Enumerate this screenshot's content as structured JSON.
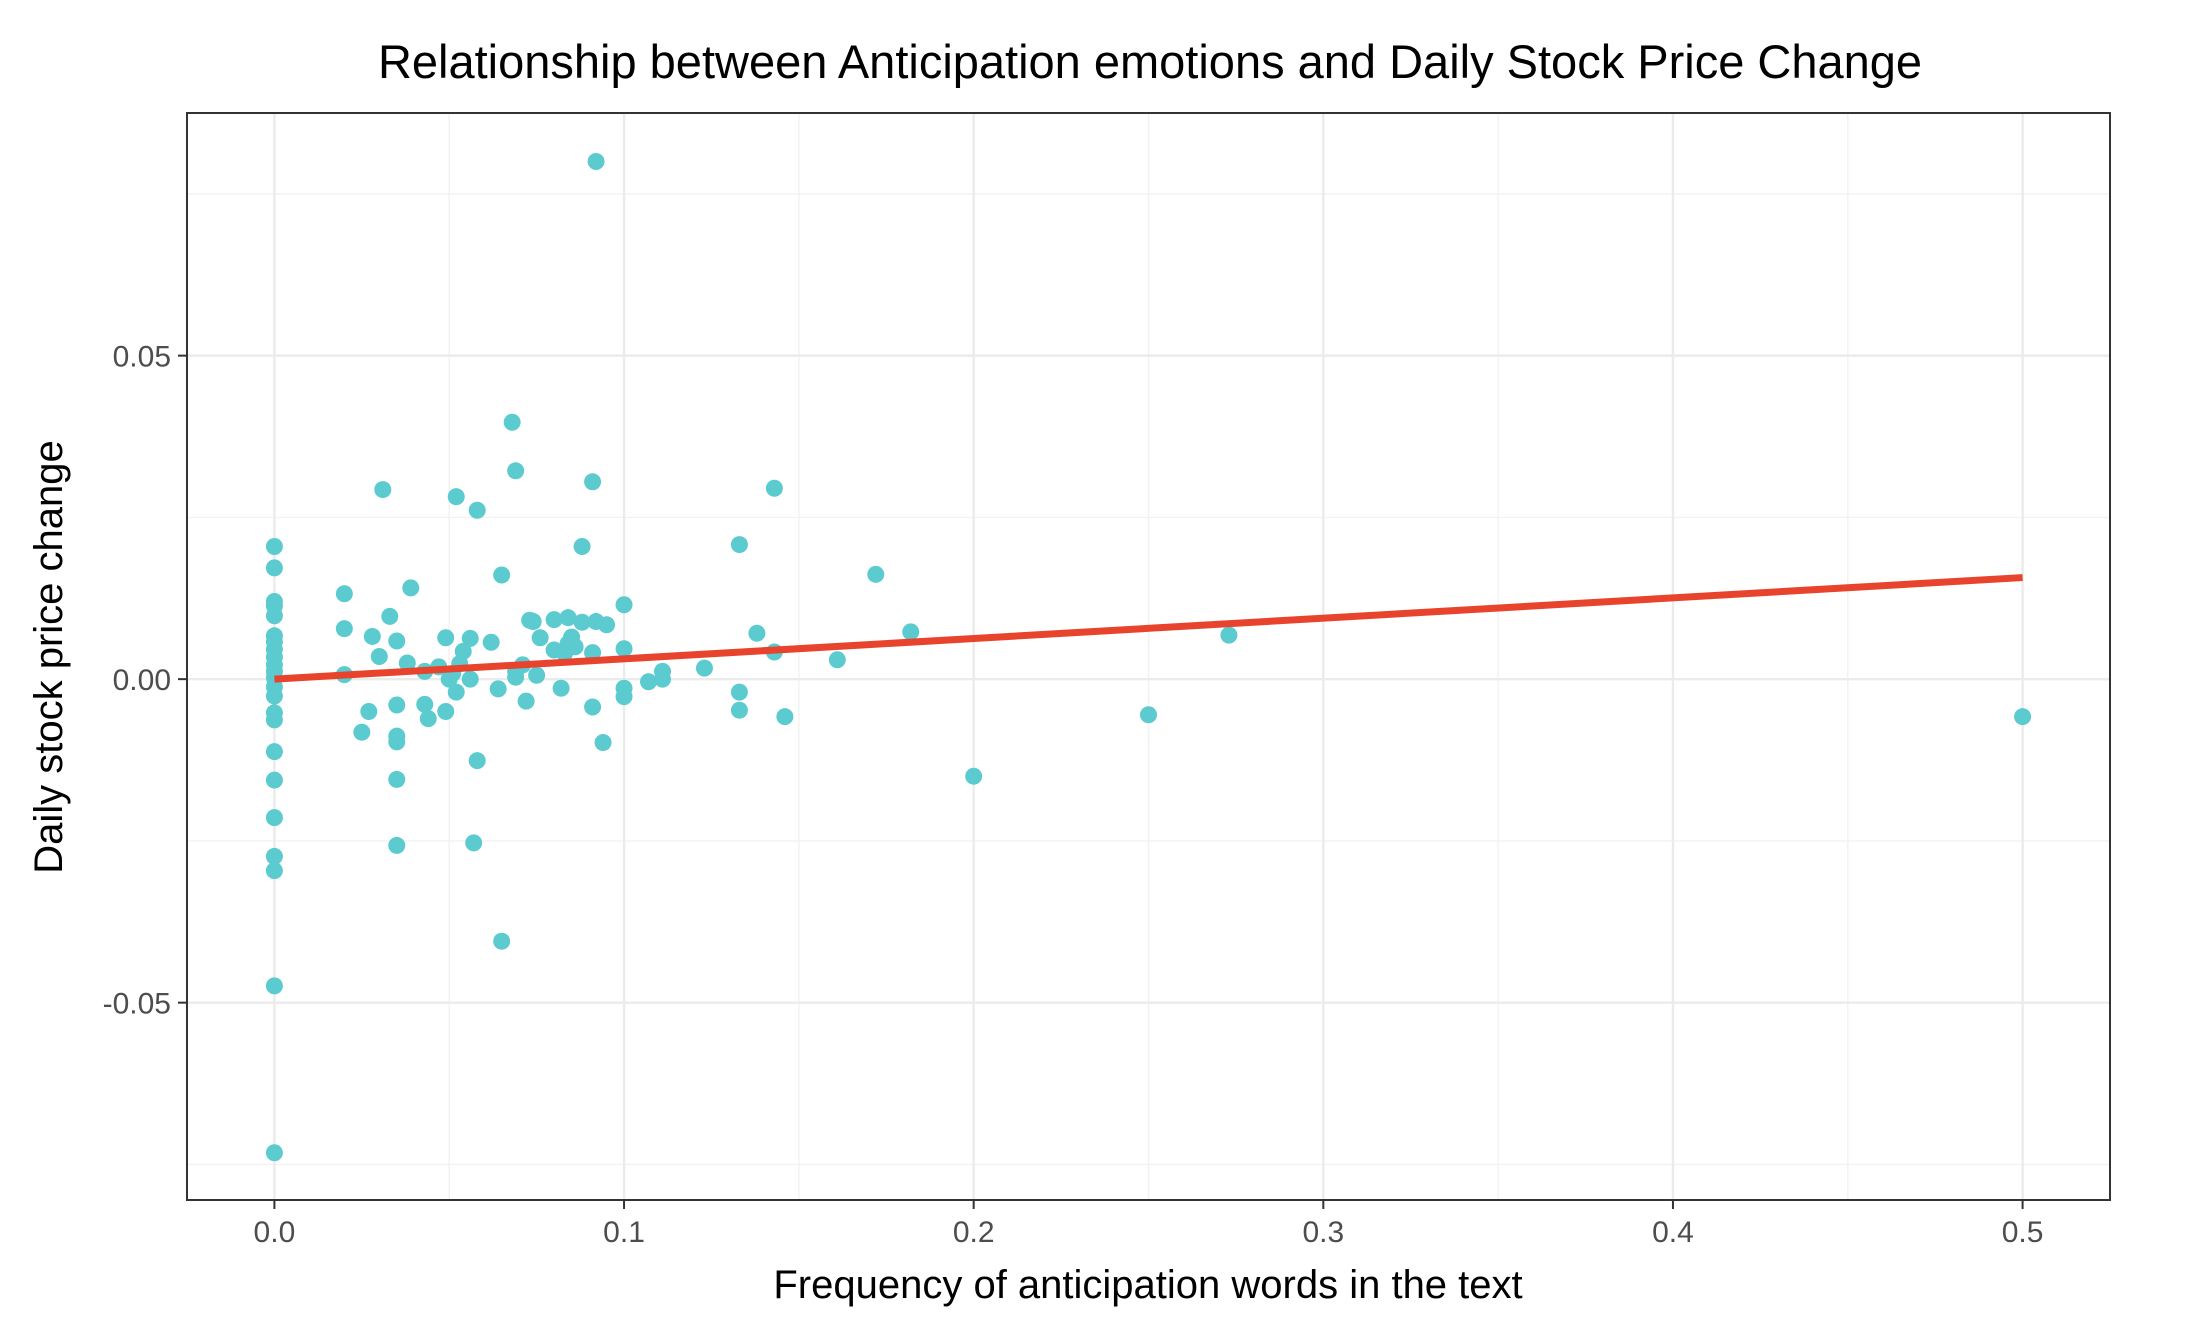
{
  "chart_data": {
    "type": "scatter",
    "title": "Relationship between Anticipation emotions and Daily Stock Price Change",
    "xlabel": "Frequency of anticipation words in the text",
    "ylabel": "Daily stock price change",
    "xlim": [
      -0.025,
      0.525
    ],
    "ylim": [
      -0.0805,
      0.0875
    ],
    "x_ticks": [
      0.0,
      0.1,
      0.2,
      0.3,
      0.4,
      0.5
    ],
    "x_tick_labels": [
      "0.0",
      "0.1",
      "0.2",
      "0.3",
      "0.4",
      "0.5"
    ],
    "y_ticks": [
      -0.05,
      0.0,
      0.05
    ],
    "y_tick_labels": [
      "-0.05",
      "0.00",
      "0.05"
    ],
    "grid": true,
    "point_color": "#5bcbd0",
    "line_color": "#e8432c",
    "points": [
      [
        0,
        0.0205
      ],
      [
        0,
        0.0172
      ],
      [
        0,
        0.012
      ],
      [
        0,
        0.0113
      ],
      [
        0,
        0.0098
      ],
      [
        0,
        0.0067
      ],
      [
        0,
        0.0058
      ],
      [
        0,
        0.0046
      ],
      [
        0,
        0.0034
      ],
      [
        0,
        0.0022
      ],
      [
        0,
        0.0012
      ],
      [
        0,
        0.0002
      ],
      [
        0,
        -0.0012
      ],
      [
        0,
        -0.0026
      ],
      [
        0,
        -0.0052
      ],
      [
        0,
        -0.0063
      ],
      [
        0,
        -0.0112
      ],
      [
        0,
        -0.0156
      ],
      [
        0,
        -0.0214
      ],
      [
        0,
        -0.0274
      ],
      [
        0,
        -0.0296
      ],
      [
        0,
        -0.0474
      ],
      [
        0,
        -0.0732
      ],
      [
        0.02,
        0.0132
      ],
      [
        0.02,
        0.0078
      ],
      [
        0.02,
        0.0007
      ],
      [
        0.025,
        -0.0082
      ],
      [
        0.027,
        -0.005
      ],
      [
        0.028,
        0.0066
      ],
      [
        0.03,
        0.0035
      ],
      [
        0.031,
        0.0293
      ],
      [
        0.033,
        0.0097
      ],
      [
        0.035,
        0.0059
      ],
      [
        0.035,
        -0.004
      ],
      [
        0.035,
        -0.0088
      ],
      [
        0.035,
        -0.0097
      ],
      [
        0.035,
        -0.0155
      ],
      [
        0.035,
        -0.0257
      ],
      [
        0.038,
        0.0025
      ],
      [
        0.039,
        0.0141
      ],
      [
        0.043,
        0.0012
      ],
      [
        0.043,
        -0.0039
      ],
      [
        0.044,
        -0.0061
      ],
      [
        0.047,
        0.0019
      ],
      [
        0.049,
        0.0064
      ],
      [
        0.049,
        -0.005
      ],
      [
        0.05,
        0.0
      ],
      [
        0.051,
        0.0009
      ],
      [
        0.052,
        0.0282
      ],
      [
        0.052,
        -0.002
      ],
      [
        0.053,
        0.0024
      ],
      [
        0.054,
        0.0043
      ],
      [
        0.056,
        0.0063
      ],
      [
        0.056,
        0.0
      ],
      [
        0.057,
        -0.0253
      ],
      [
        0.058,
        0.0261
      ],
      [
        0.058,
        -0.0126
      ],
      [
        0.062,
        0.0057
      ],
      [
        0.064,
        -0.0015
      ],
      [
        0.065,
        0.0161
      ],
      [
        0.065,
        -0.0405
      ],
      [
        0.068,
        0.0397
      ],
      [
        0.069,
        0.0012
      ],
      [
        0.069,
        0.0003
      ],
      [
        0.069,
        0.0322
      ],
      [
        0.071,
        0.0022
      ],
      [
        0.072,
        -0.0034
      ],
      [
        0.073,
        0.0091
      ],
      [
        0.074,
        0.0089
      ],
      [
        0.075,
        0.0006
      ],
      [
        0.076,
        0.0064
      ],
      [
        0.08,
        0.0092
      ],
      [
        0.08,
        0.0045
      ],
      [
        0.082,
        -0.0014
      ],
      [
        0.083,
        0.004
      ],
      [
        0.084,
        0.0095
      ],
      [
        0.084,
        0.0055
      ],
      [
        0.085,
        0.0065
      ],
      [
        0.086,
        0.005
      ],
      [
        0.088,
        0.0088
      ],
      [
        0.088,
        0.0205
      ],
      [
        0.091,
        0.0305
      ],
      [
        0.091,
        0.0041
      ],
      [
        0.091,
        -0.0043
      ],
      [
        0.092,
        0.08
      ],
      [
        0.092,
        0.0089
      ],
      [
        0.094,
        -0.0098
      ],
      [
        0.095,
        0.0084
      ],
      [
        0.1,
        0.0115
      ],
      [
        0.1,
        0.0047
      ],
      [
        0.1,
        -0.0014
      ],
      [
        0.1,
        -0.0027
      ],
      [
        0.107,
        -0.0004
      ],
      [
        0.111,
        0.0012
      ],
      [
        0.111,
        0.0
      ],
      [
        0.123,
        0.0017
      ],
      [
        0.133,
        0.0208
      ],
      [
        0.133,
        -0.002
      ],
      [
        0.133,
        -0.0048
      ],
      [
        0.138,
        0.0071
      ],
      [
        0.143,
        0.0295
      ],
      [
        0.143,
        0.0042
      ],
      [
        0.146,
        -0.0058
      ],
      [
        0.161,
        0.003
      ],
      [
        0.172,
        0.0162
      ],
      [
        0.182,
        0.0073
      ],
      [
        0.2,
        -0.015
      ],
      [
        0.25,
        -0.0055
      ],
      [
        0.273,
        0.0068
      ],
      [
        0.5,
        -0.0058
      ]
    ],
    "regression_line": {
      "x": [
        0.0,
        0.5
      ],
      "y": [
        0.0,
        0.0157
      ]
    }
  }
}
